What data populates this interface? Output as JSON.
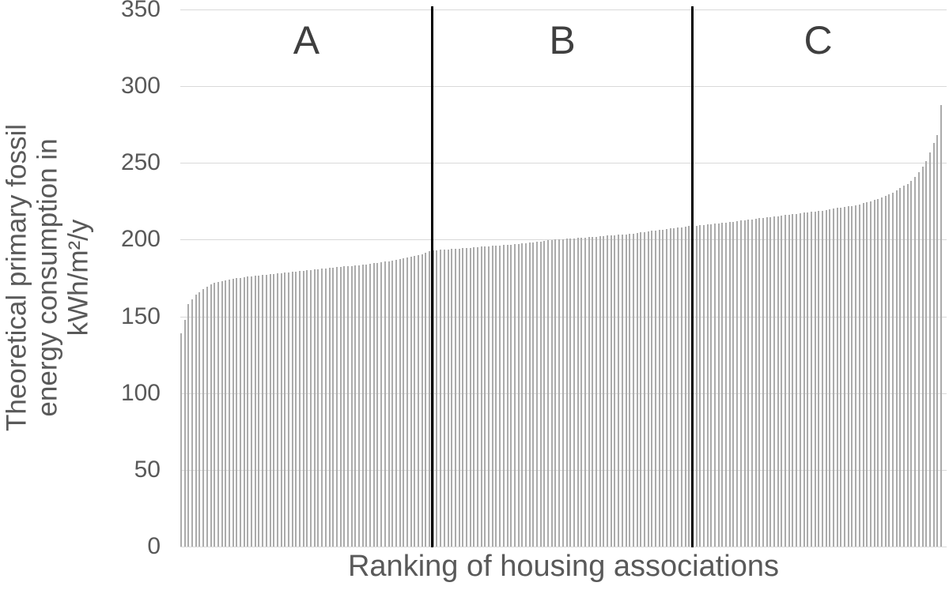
{
  "colors": {
    "bar": "#ababab",
    "gridline": "#d9d9d9",
    "divider": "#000000",
    "axis_text": "#595959",
    "section_label_text": "#3f3f3f",
    "background": "#ffffff"
  },
  "chart_data": {
    "type": "bar",
    "title": "",
    "xlabel": "Ranking of housing associations",
    "ylabel": "Theoretical primary fossil energy consumption in kWh/m²/y",
    "ylabel_lines": [
      "Theoretical primary fossil",
      "energy consumption in",
      "kWh/m²/y"
    ],
    "ylim": [
      0,
      350
    ],
    "yticks": [
      0,
      50,
      100,
      150,
      200,
      250,
      300,
      350
    ],
    "grid": true,
    "legend": false,
    "x_axis_type": "ranked-index",
    "sections": [
      {
        "label": "A",
        "end_index": 68
      },
      {
        "label": "B",
        "end_index": 138
      },
      {
        "label": "C",
        "end_index": 206
      }
    ],
    "values": [
      139,
      148,
      158,
      161,
      164,
      166,
      168,
      169.5,
      171,
      172,
      172.5,
      173,
      173.5,
      174,
      174.5,
      175,
      175,
      175.5,
      176,
      176,
      176.5,
      176.5,
      177,
      177,
      177.5,
      177.5,
      178,
      178,
      178.5,
      178.5,
      179,
      179,
      179.5,
      179.5,
      180,
      180,
      180.5,
      180.5,
      181,
      181,
      181.5,
      181.5,
      182,
      182,
      182.5,
      182.5,
      183,
      183.5,
      183.5,
      184,
      184,
      184.5,
      185,
      185,
      185.5,
      186,
      186,
      186.5,
      187,
      187.5,
      188,
      188.5,
      189,
      189.5,
      190,
      190.5,
      191.5,
      192.5,
      193,
      193.2,
      193.4,
      193.5,
      193.7,
      193.9,
      194.1,
      194.3,
      194.5,
      194.6,
      194.8,
      195,
      195.2,
      195.4,
      195.5,
      195.7,
      195.9,
      196.1,
      196.3,
      196.5,
      196.6,
      196.8,
      197,
      197.3,
      197.5,
      197.8,
      198.1,
      198.4,
      198.6,
      198.9,
      199.2,
      199.5,
      199.7,
      200,
      200.2,
      200.4,
      200.6,
      200.7,
      200.9,
      201.1,
      201.3,
      201.5,
      201.7,
      201.8,
      202,
      202.2,
      202.4,
      202.6,
      202.8,
      202.9,
      203.1,
      203.3,
      203.5,
      203.8,
      204.1,
      204.4,
      204.8,
      205.1,
      205.4,
      205.7,
      206,
      206.3,
      206.6,
      206.9,
      207.2,
      207.5,
      207.9,
      208.2,
      208.5,
      208.8,
      209,
      209.2,
      209.4,
      209.6,
      209.8,
      210,
      210.3,
      210.6,
      210.9,
      211.2,
      211.5,
      211.8,
      212.1,
      212.4,
      212.7,
      213,
      213.3,
      213.6,
      213.9,
      214.2,
      214.5,
      214.8,
      215.1,
      215.4,
      215.7,
      216,
      216.3,
      216.6,
      216.9,
      217.2,
      217.5,
      217.8,
      218.1,
      218.4,
      218.7,
      219,
      219.4,
      219.8,
      220.2,
      220.6,
      221,
      221.4,
      221.8,
      222.1,
      222.5,
      223.1,
      223.7,
      224.4,
      225,
      225.8,
      226.6,
      227.5,
      228.5,
      229.5,
      230.7,
      232,
      233.5,
      235,
      236.5,
      238.5,
      241,
      244,
      247.5,
      251,
      257,
      263,
      268,
      288
    ]
  }
}
